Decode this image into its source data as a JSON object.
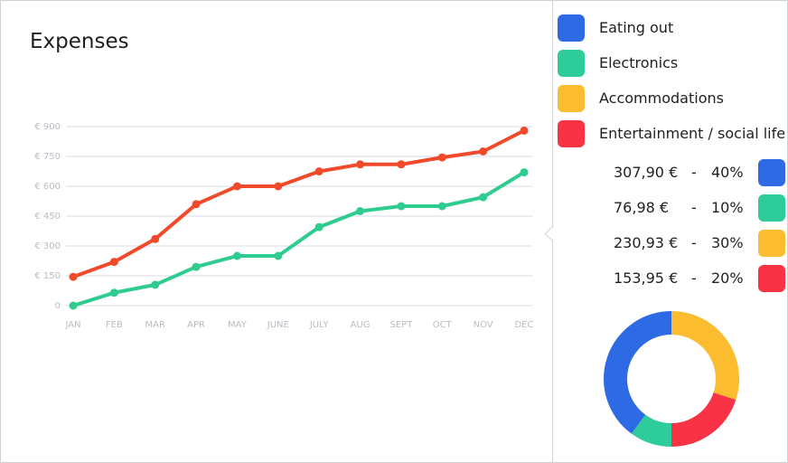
{
  "title": "Expenses",
  "chart_data": {
    "type": "line",
    "x": [
      "JAN",
      "FEB",
      "MAR",
      "APR",
      "MAY",
      "JUNE",
      "JULY",
      "AUG",
      "SEPT",
      "OCT",
      "NOV",
      "DEC"
    ],
    "y_ticks": [
      "0",
      "€ 150",
      "€ 300",
      "€ 450",
      "€ 600",
      "€ 750",
      "€ 900"
    ],
    "ylim": [
      0,
      900
    ],
    "grid": true,
    "series": [
      {
        "color": "#f04a2b",
        "values": [
          145,
          220,
          335,
          510,
          600,
          600,
          675,
          710,
          710,
          745,
          775,
          880
        ]
      },
      {
        "color": "#2ecc8f",
        "values": [
          0,
          65,
          105,
          195,
          250,
          250,
          395,
          475,
          500,
          500,
          545,
          670
        ]
      }
    ]
  },
  "legend": [
    {
      "label": "Eating out",
      "color": "#2f6ae5"
    },
    {
      "label": "Electronics",
      "color": "#2ecc9a"
    },
    {
      "label": "Accommodations",
      "color": "#fbbc30"
    },
    {
      "label": "Entertainment / social life",
      "color": "#fa3246"
    }
  ],
  "breakdown": [
    {
      "amount": "307,90 €",
      "sep": "-",
      "percent": "40%",
      "color": "#2f6ae5"
    },
    {
      "amount": "76,98 €",
      "sep": "-",
      "percent": "10%",
      "color": "#2ecc9a"
    },
    {
      "amount": "230,93 €",
      "sep": "-",
      "percent": "30%",
      "color": "#fbbc30"
    },
    {
      "amount": "153,95 €",
      "sep": "-",
      "percent": "20%",
      "color": "#fa3246"
    }
  ],
  "donut": [
    {
      "name": "Accommodations",
      "value": 30,
      "color": "#fbbc30"
    },
    {
      "name": "Entertainment / social life",
      "value": 20,
      "color": "#fa3246"
    },
    {
      "name": "Electronics",
      "value": 10,
      "color": "#2ecc9a"
    },
    {
      "name": "Eating out",
      "value": 40,
      "color": "#2f6ae5"
    }
  ]
}
